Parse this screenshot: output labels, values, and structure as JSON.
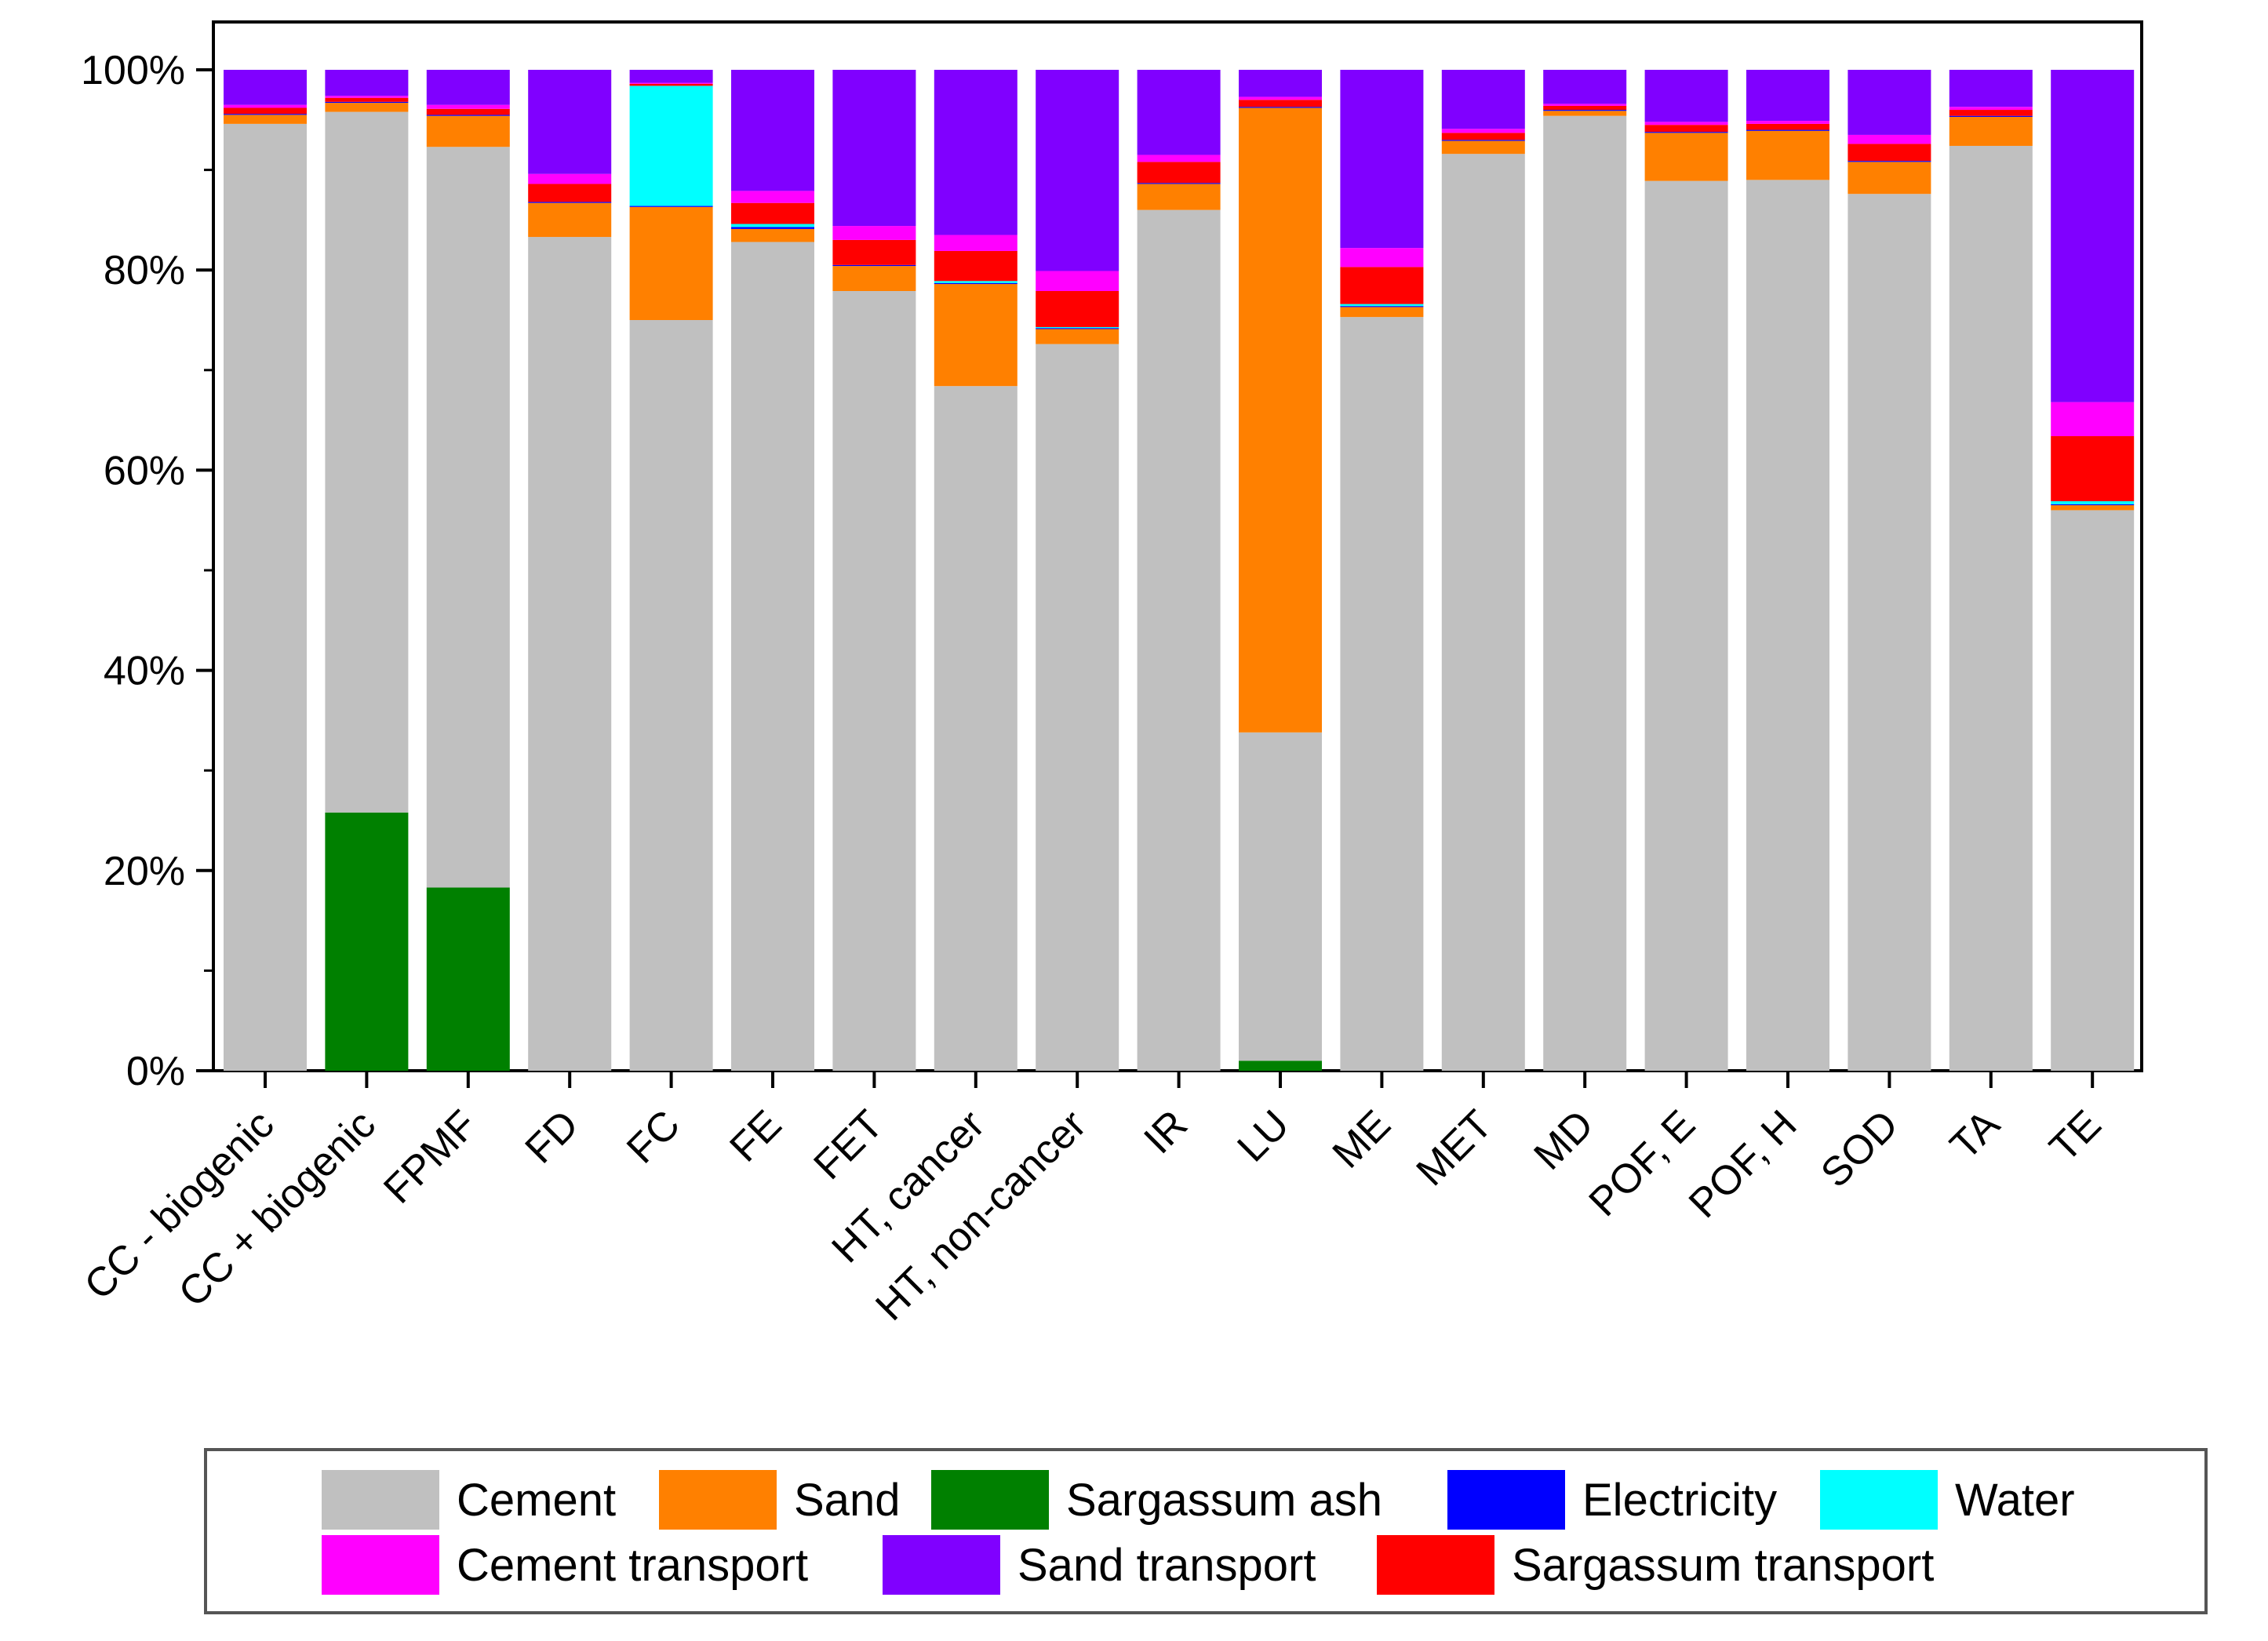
{
  "chart_data": {
    "type": "bar",
    "stacked": true,
    "normalized": true,
    "title": "",
    "xlabel": "",
    "ylabel": "",
    "ylim": [
      0,
      100
    ],
    "y_ticks": [
      "0%",
      "20%",
      "40%",
      "60%",
      "80%",
      "100%"
    ],
    "y_tick_values": [
      0,
      20,
      40,
      60,
      80,
      100
    ],
    "legend_position": "bottom",
    "categories": [
      "CC - biogenic",
      "CC + biogenic",
      "FPMF",
      "FD",
      "FC",
      "FE",
      "FET",
      "HT, cancer",
      "HT, non-cancer",
      "IR",
      "LU",
      "ME",
      "MET",
      "MD",
      "POF, E",
      "POF, H",
      "SOD",
      "TA",
      "TE"
    ],
    "series": [
      {
        "name": "Sargassum ash",
        "color": "#008000",
        "values": [
          0,
          25.8,
          18.3,
          0,
          0,
          0,
          0,
          0,
          0,
          0,
          1.0,
          0,
          0,
          0,
          0,
          0,
          0,
          0,
          0
        ]
      },
      {
        "name": "Cement",
        "color": "#c0c0c0",
        "values": [
          94.6,
          70.0,
          74.0,
          83.3,
          75.0,
          82.8,
          77.9,
          68.4,
          72.6,
          86.0,
          32.8,
          75.3,
          91.6,
          95.4,
          88.9,
          89.0,
          87.6,
          92.4,
          56.0
        ]
      },
      {
        "name": "Sand",
        "color": "#ff8000",
        "values": [
          0.9,
          0.9,
          3.1,
          3.4,
          11.3,
          1.3,
          2.5,
          10.2,
          1.5,
          2.6,
          62.4,
          1.0,
          1.3,
          0.5,
          4.8,
          4.9,
          3.2,
          2.9,
          0.5
        ]
      },
      {
        "name": "Electricity",
        "color": "#0000ff",
        "values": [
          0.1,
          0.1,
          0.1,
          0.1,
          0.1,
          0.2,
          0.1,
          0.1,
          0.1,
          0.1,
          0.1,
          0.1,
          0.1,
          0.1,
          0.1,
          0.1,
          0.1,
          0.1,
          0.1
        ]
      },
      {
        "name": "Water",
        "color": "#00ffff",
        "values": [
          0,
          0,
          0,
          0,
          12.0,
          0.3,
          0,
          0.2,
          0.1,
          0,
          0,
          0.2,
          0,
          0,
          0,
          0,
          0,
          0,
          0.3
        ]
      },
      {
        "name": "Sargassum transport",
        "color": "#ff0000",
        "values": [
          0.6,
          0.4,
          0.6,
          1.8,
          0.2,
          2.1,
          2.5,
          3.0,
          3.6,
          2.1,
          0.7,
          3.7,
          0.7,
          0.4,
          0.7,
          0.6,
          1.7,
          0.6,
          6.5
        ]
      },
      {
        "name": "Cement transport",
        "color": "#ff00ff",
        "values": [
          0.3,
          0.2,
          0.4,
          1.0,
          0.1,
          1.2,
          1.4,
          1.6,
          2.0,
          0.7,
          0.3,
          1.9,
          0.4,
          0.2,
          0.3,
          0.3,
          0.9,
          0.3,
          3.4
        ]
      },
      {
        "name": "Sand transport",
        "color": "#8000ff",
        "values": [
          3.5,
          2.6,
          3.5,
          10.4,
          1.3,
          12.1,
          15.6,
          16.5,
          20.1,
          8.5,
          2.7,
          17.8,
          5.9,
          3.4,
          5.2,
          5.1,
          6.5,
          3.7,
          33.2
        ]
      }
    ],
    "legend": [
      "Cement",
      "Sand",
      "Sargassum ash",
      "Electricity",
      "Water",
      "Cement transport",
      "Sand transport",
      "Sargassum transport"
    ]
  }
}
